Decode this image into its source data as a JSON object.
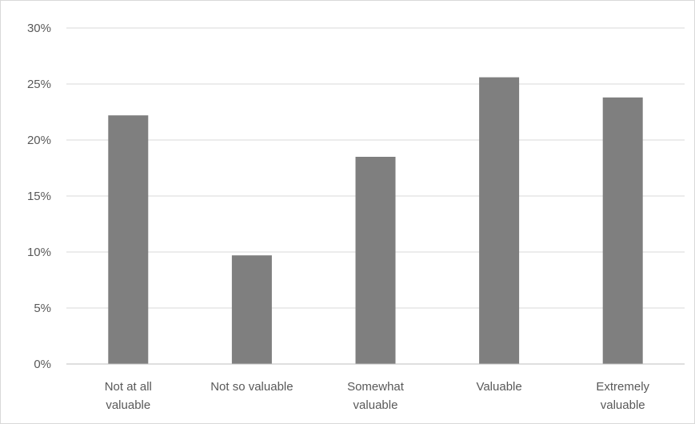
{
  "chart_data": {
    "type": "bar",
    "title": "",
    "xlabel": "",
    "ylabel": "",
    "categories": [
      [
        "Not at all",
        "valuable"
      ],
      [
        "Not so valuable"
      ],
      [
        "Somewhat",
        "valuable"
      ],
      [
        "Valuable"
      ],
      [
        "Extremely",
        "valuable"
      ]
    ],
    "values": [
      22.2,
      9.7,
      18.5,
      25.6,
      23.8
    ],
    "unit": "%",
    "ylim": [
      0,
      30
    ],
    "yticks": [
      "0%",
      "5%",
      "10%",
      "15%",
      "20%",
      "25%",
      "30%"
    ],
    "grid": true,
    "legend": "none",
    "bar_color": "#7f7f7f",
    "grid_color": "#d9d9d9",
    "axis_color": "#bfbfbf",
    "text_color": "#595959"
  }
}
